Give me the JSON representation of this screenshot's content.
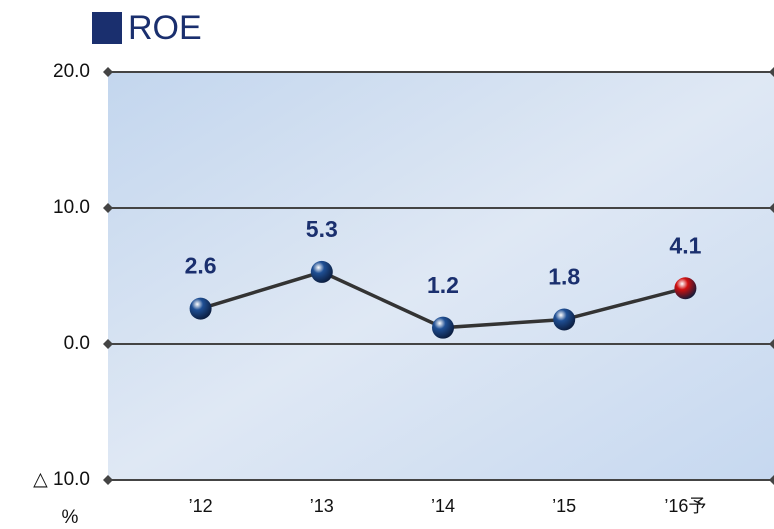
{
  "chart_data": {
    "type": "line",
    "title": "ROE",
    "categories": [
      "’12",
      "’13",
      "’14",
      "’15",
      "’16予"
    ],
    "values": [
      2.6,
      5.3,
      1.2,
      1.8,
      4.1
    ],
    "point_colors": [
      "#1f4f94",
      "#1f4f94",
      "#1f4f94",
      "#1f4f94",
      "#d01010"
    ],
    "line_color": "#333333",
    "ylim": [
      -10,
      20
    ],
    "yticks": [
      {
        "value": -10,
        "label": "△ 10.0"
      },
      {
        "value": 0,
        "label": "0.0"
      },
      {
        "value": 10,
        "label": "10.0"
      },
      {
        "value": 20,
        "label": "20.0"
      }
    ],
    "y_label": "%",
    "grid": true
  }
}
